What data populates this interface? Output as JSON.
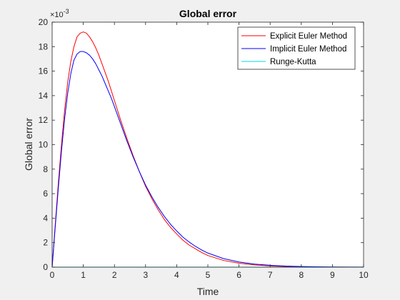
{
  "chart_data": {
    "type": "line",
    "title": "Global error",
    "xlabel": "Time",
    "ylabel": "Global error",
    "y_exponent_label": "×10",
    "y_exponent_value": "-3",
    "xlim": [
      0,
      10
    ],
    "ylim": [
      0,
      20
    ],
    "x_ticks": [
      "0",
      "1",
      "2",
      "3",
      "4",
      "5",
      "6",
      "7",
      "8",
      "9",
      "10"
    ],
    "y_ticks": [
      "0",
      "2",
      "4",
      "6",
      "8",
      "10",
      "12",
      "14",
      "16",
      "18",
      "20"
    ],
    "grid": false,
    "legend_position": "top-right",
    "x": [
      0,
      0.1,
      0.2,
      0.3,
      0.4,
      0.5,
      0.6,
      0.7,
      0.8,
      0.9,
      1.0,
      1.1,
      1.2,
      1.3,
      1.4,
      1.5,
      1.6,
      1.7,
      1.8,
      1.9,
      2.0,
      2.2,
      2.4,
      2.6,
      2.8,
      3.0,
      3.2,
      3.4,
      3.6,
      3.8,
      4.0,
      4.2,
      4.4,
      4.6,
      4.8,
      5.0,
      5.5,
      6.0,
      6.5,
      7.0,
      7.5,
      8.0,
      8.5,
      9.0,
      9.5,
      10.0
    ],
    "series": [
      {
        "name": "Explicit Euler Method",
        "color": "#ff0000",
        "values": [
          0,
          3.5,
          6.9,
          10.0,
          12.8,
          15.1,
          16.8,
          18.0,
          18.8,
          19.1,
          19.2,
          19.1,
          18.8,
          18.4,
          17.9,
          17.3,
          16.6,
          15.9,
          15.2,
          14.4,
          13.6,
          12.0,
          10.5,
          9.1,
          7.8,
          6.6,
          5.6,
          4.7,
          3.9,
          3.25,
          2.7,
          2.2,
          1.8,
          1.5,
          1.2,
          0.95,
          0.55,
          0.32,
          0.18,
          0.1,
          0.055,
          0.03,
          0.016,
          0.008,
          0.004,
          0.002
        ]
      },
      {
        "name": "Implicit Euler Method",
        "color": "#0000ff",
        "values": [
          0,
          3.3,
          6.5,
          9.5,
          12.1,
          14.2,
          15.8,
          16.9,
          17.4,
          17.6,
          17.6,
          17.5,
          17.3,
          17.0,
          16.6,
          16.1,
          15.6,
          15.0,
          14.4,
          13.8,
          13.1,
          11.7,
          10.3,
          9.0,
          7.8,
          6.7,
          5.75,
          4.9,
          4.15,
          3.5,
          2.95,
          2.45,
          2.05,
          1.7,
          1.4,
          1.15,
          0.7,
          0.42,
          0.25,
          0.15,
          0.085,
          0.05,
          0.028,
          0.016,
          0.009,
          0.005
        ]
      },
      {
        "name": "Runge-Kutta",
        "color": "#00d8d8",
        "values": [
          0,
          0.001,
          0.001,
          0.001,
          0.001,
          0.001,
          0.001,
          0.001,
          0.001,
          0.001,
          0.001,
          0.001,
          0.001,
          0.001,
          0.001,
          0.001,
          0.001,
          0.001,
          0.001,
          0.001,
          0.001,
          0.001,
          0.001,
          0.001,
          0.001,
          0.001,
          0.001,
          0.001,
          0.001,
          0.001,
          0.001,
          0.001,
          0.001,
          0.001,
          0.001,
          0.001,
          0,
          0,
          0,
          0,
          0,
          0,
          0,
          0,
          0,
          0
        ]
      }
    ]
  }
}
